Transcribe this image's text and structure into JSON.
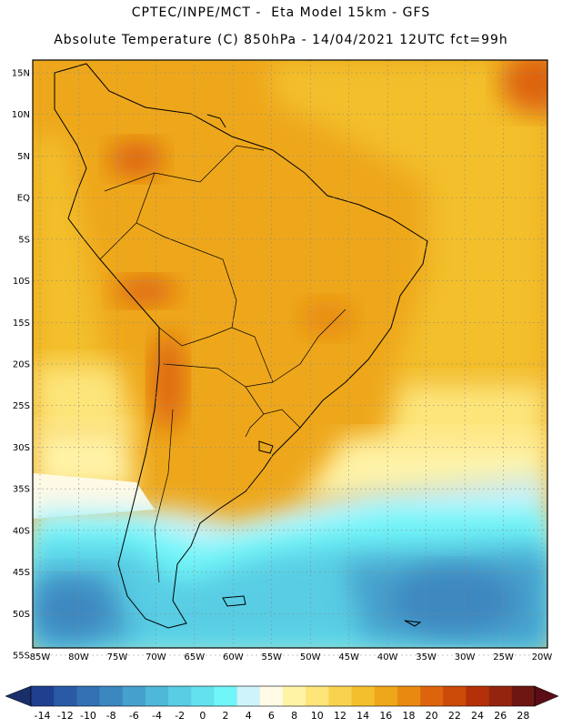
{
  "header": {
    "line1": "CPTEC/INPE/MCT -  Eta Model 15km - GFS",
    "line2": "Absolute Temperature (C) 850hPa - 14/04/2021 12UTC fct=99h"
  },
  "map": {
    "lat_labels": [
      "15N",
      "10N",
      "5N",
      "EQ",
      "5S",
      "10S",
      "15S",
      "20S",
      "25S",
      "30S",
      "35S",
      "40S",
      "45S",
      "50S",
      "55S"
    ],
    "lon_labels": [
      "85W",
      "80W",
      "75W",
      "70W",
      "65W",
      "60W",
      "55W",
      "50W",
      "45W",
      "40W",
      "35W",
      "30W",
      "25W",
      "20W"
    ],
    "lat_range": [
      15,
      -55
    ],
    "lon_range": [
      -85,
      -20
    ],
    "grid": "dashed"
  },
  "legend": {
    "ticks": [
      "-14",
      "-12",
      "-10",
      "-8",
      "-6",
      "-4",
      "-2",
      "0",
      "2",
      "4",
      "6",
      "8",
      "10",
      "12",
      "14",
      "16",
      "18",
      "20",
      "22",
      "24",
      "26",
      "28"
    ],
    "colors": [
      "#1f3f8f",
      "#2a5aa6",
      "#3470b4",
      "#3c87c0",
      "#46a0cc",
      "#4fb7d8",
      "#58cde4",
      "#63e2ee",
      "#70f5f8",
      "#cff3fb",
      "#fffae6",
      "#fff3a6",
      "#fde57a",
      "#f9d350",
      "#f3bf2c",
      "#eea71b",
      "#e88a10",
      "#dd640c",
      "#cb4a08",
      "#b33008",
      "#95240e",
      "#6e1712"
    ]
  }
}
